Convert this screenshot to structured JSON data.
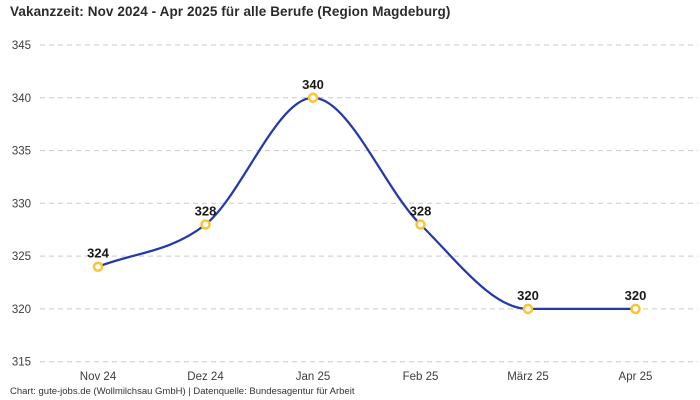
{
  "page": {
    "title": "Vakanzzeit: Nov 2024 - Apr 2025 für alle Berufe (Region Magdeburg)",
    "footer": "Chart: gute-jobs.de (Wollmilchsau GmbH) | Datenquelle: Bundesagentur für Arbeit"
  },
  "chart_data": {
    "type": "line",
    "title": "Vakanzzeit: Nov 2024 - Apr 2025 für alle Berufe (Region Magdeburg)",
    "categories": [
      "Nov 24",
      "Dez 24",
      "Jan 25",
      "Feb 25",
      "März 25",
      "Apr 25"
    ],
    "series": [
      {
        "name": "Vakanzzeit",
        "values": [
          324,
          328,
          340,
          328,
          320,
          320
        ]
      }
    ],
    "data_labels": [
      324,
      328,
      340,
      328,
      320,
      320
    ],
    "y_ticks": [
      345,
      340,
      335,
      330,
      325,
      320,
      315
    ],
    "ylim": [
      315,
      345
    ],
    "xlabel": "",
    "ylabel": "",
    "legend_position": "none",
    "grid": "horizontal-dashed",
    "line_color": "#2539a8",
    "marker_ring_color": "#fdc330",
    "marker_fill_color": "#ffffff",
    "gridline_color": "#c9c9c9",
    "tick_label_color": "#3d3d3d",
    "value_label_color": "#1a1a1a"
  }
}
